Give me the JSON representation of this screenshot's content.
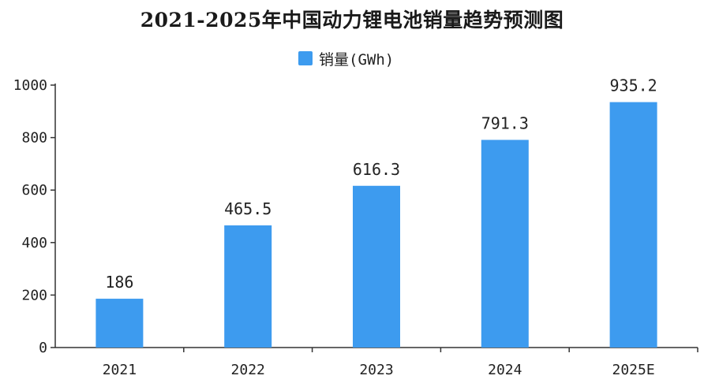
{
  "chart_data": {
    "type": "bar",
    "title": "2021-2025年中国动力锂电池销量趋势预测图",
    "categories": [
      "2021",
      "2022",
      "2023",
      "2024",
      "2025E"
    ],
    "series": [
      {
        "name": "销量(GWh)",
        "values": [
          186,
          465.5,
          616.3,
          791.3,
          935.2
        ],
        "labels": [
          "186",
          "465.5",
          "616.3",
          "791.3",
          "935.2"
        ],
        "color": "#3d9bef"
      }
    ],
    "yticks": [
      "0",
      "200",
      "400",
      "600",
      "800",
      "1000"
    ],
    "ylim": [
      0,
      1000
    ],
    "grid": false,
    "legend_position": "top-center"
  }
}
